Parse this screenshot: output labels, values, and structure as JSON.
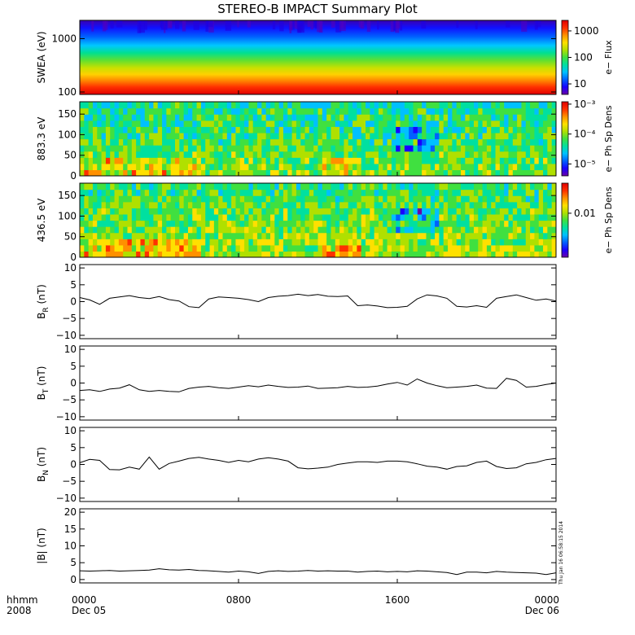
{
  "title": "STEREO-B IMPACT Summary Plot",
  "timestamp": "Thu Jan 16 06:58:15 2014",
  "colors": {
    "frame": "#000000",
    "trace": "#000000",
    "colormap": [
      "#6a00a8",
      "#1900ff",
      "#0060ff",
      "#00c0ff",
      "#00e0a0",
      "#40e040",
      "#b0e000",
      "#ffe000",
      "#ff9000",
      "#ff3000",
      "#e00000"
    ]
  },
  "x_axis": {
    "ticks": [
      "0000",
      "0800",
      "1600",
      "0000"
    ],
    "tick_hours": [
      0,
      8,
      16,
      24
    ],
    "sub_ticks": [
      "Dec 05",
      "",
      "",
      "Dec 06"
    ],
    "left_label": "hhmm",
    "left_sub": "2008",
    "range_hours": [
      0,
      24
    ]
  },
  "chart_data": [
    {
      "type": "heatmap",
      "name": "swea",
      "ylabel": "SWEA (eV)",
      "yscale": "log",
      "ylim": [
        90,
        2200
      ],
      "yticks": [
        "1000",
        "100"
      ],
      "ytick_values": [
        1000,
        100
      ],
      "colorbar": {
        "label": "e− Flux",
        "scale": "log",
        "ticks": [
          "1000",
          "100",
          "10"
        ],
        "tick_values": [
          1000,
          100,
          10
        ],
        "range": [
          4,
          2500
        ]
      },
      "description_values": {
        "flux_at_100eV": 1500,
        "flux_at_400eV": 100,
        "flux_at_2000eV": 5
      }
    },
    {
      "type": "heatmap",
      "name": "pad883",
      "ylabel": "883.3 eV",
      "ylim": [
        0,
        180
      ],
      "yticks": [
        "150",
        "100",
        "50",
        "0"
      ],
      "ytick_values": [
        150,
        100,
        50,
        0
      ],
      "colorbar": {
        "label": "e− Ph Sp Dens",
        "scale": "log",
        "ticks": [
          "10⁻³",
          "10⁻⁴",
          "10⁻⁵"
        ],
        "tick_values": [
          0.001,
          0.0001,
          1e-05
        ],
        "range": [
          4e-06,
          0.0012
        ]
      }
    },
    {
      "type": "heatmap",
      "name": "pad436",
      "ylabel": "436.5 eV",
      "ylim": [
        0,
        180
      ],
      "yticks": [
        "150",
        "100",
        "50",
        "0"
      ],
      "ytick_values": [
        150,
        100,
        50,
        0
      ],
      "colorbar": {
        "label": "e− Ph Sp Dens",
        "scale": "log",
        "ticks": [
          "0.01"
        ],
        "tick_values": [
          0.01
        ],
        "range": [
          0.002,
          0.03
        ]
      }
    },
    {
      "type": "line",
      "name": "br",
      "ylabel": "B",
      "ylabel_sub": "R",
      "ylabel_unit": " (nT)",
      "ylim": [
        -11,
        11
      ],
      "yticks": [
        "10",
        "5",
        "0",
        "−5",
        "−10"
      ],
      "ytick_values": [
        10,
        5,
        0,
        -5,
        -10
      ],
      "x": [
        0,
        0.5,
        1,
        1.5,
        2,
        2.5,
        3,
        3.5,
        4,
        4.5,
        5,
        5.5,
        6,
        6.5,
        7,
        7.5,
        8,
        8.5,
        9,
        9.5,
        10,
        10.5,
        11,
        11.5,
        12,
        12.5,
        13,
        13.5,
        14,
        14.5,
        15,
        15.5,
        16,
        16.5,
        17,
        17.5,
        18,
        18.5,
        19,
        19.5,
        20,
        20.5,
        21,
        21.5,
        22,
        22.5,
        23,
        23.5,
        24
      ],
      "values": [
        1.2,
        0.5,
        -0.8,
        1.0,
        1.4,
        1.8,
        1.2,
        0.9,
        1.5,
        0.6,
        0.2,
        -1.5,
        -1.8,
        0.8,
        1.4,
        1.2,
        1.0,
        0.6,
        0.0,
        1.2,
        1.6,
        1.8,
        2.2,
        1.8,
        2.1,
        1.6,
        1.5,
        1.7,
        -1.2,
        -1.0,
        -1.3,
        -1.8,
        -1.7,
        -1.4,
        0.8,
        2.0,
        1.7,
        1.0,
        -1.4,
        -1.6,
        -1.2,
        -1.7,
        1.0,
        1.5,
        2.0,
        1.2,
        0.4,
        0.8,
        0.2
      ]
    },
    {
      "type": "line",
      "name": "bt",
      "ylabel": "B",
      "ylabel_sub": "T",
      "ylabel_unit": " (nT)",
      "ylim": [
        -11,
        11
      ],
      "yticks": [
        "10",
        "5",
        "0",
        "−5",
        "−10"
      ],
      "ytick_values": [
        10,
        5,
        0,
        -5,
        -10
      ],
      "x": [
        0,
        0.5,
        1,
        1.5,
        2,
        2.5,
        3,
        3.5,
        4,
        4.5,
        5,
        5.5,
        6,
        6.5,
        7,
        7.5,
        8,
        8.5,
        9,
        9.5,
        10,
        10.5,
        11,
        11.5,
        12,
        12.5,
        13,
        13.5,
        14,
        14.5,
        15,
        15.5,
        16,
        16.5,
        17,
        17.5,
        18,
        18.5,
        19,
        19.5,
        20,
        20.5,
        21,
        21.5,
        22,
        22.5,
        23,
        23.5,
        24
      ],
      "values": [
        -2.2,
        -2.0,
        -2.5,
        -1.8,
        -1.5,
        -0.5,
        -2.0,
        -2.5,
        -2.2,
        -2.5,
        -2.6,
        -1.6,
        -1.2,
        -1.0,
        -1.4,
        -1.6,
        -1.2,
        -0.8,
        -1.1,
        -0.6,
        -1.0,
        -1.3,
        -1.2,
        -0.9,
        -1.6,
        -1.5,
        -1.4,
        -1.0,
        -1.3,
        -1.2,
        -0.9,
        -0.3,
        0.2,
        -0.6,
        1.2,
        0.0,
        -0.8,
        -1.4,
        -1.2,
        -1.0,
        -0.6,
        -1.5,
        -1.6,
        1.4,
        0.8,
        -1.2,
        -1.0,
        -0.4,
        0.0
      ]
    },
    {
      "type": "line",
      "name": "bn",
      "ylabel": "B",
      "ylabel_sub": "N",
      "ylabel_unit": " (nT)",
      "ylim": [
        -11,
        11
      ],
      "yticks": [
        "10",
        "5",
        "0",
        "−5",
        "−10"
      ],
      "ytick_values": [
        10,
        5,
        0,
        -5,
        -10
      ],
      "x": [
        0,
        0.5,
        1,
        1.5,
        2,
        2.5,
        3,
        3.5,
        4,
        4.5,
        5,
        5.5,
        6,
        6.5,
        7,
        7.5,
        8,
        8.5,
        9,
        9.5,
        10,
        10.5,
        11,
        11.5,
        12,
        12.5,
        13,
        13.5,
        14,
        14.5,
        15,
        15.5,
        16,
        16.5,
        17,
        17.5,
        18,
        18.5,
        19,
        19.5,
        20,
        20.5,
        21,
        21.5,
        22,
        22.5,
        23,
        23.5,
        24
      ],
      "values": [
        0.5,
        1.5,
        1.2,
        -1.5,
        -1.6,
        -0.8,
        -1.4,
        2.2,
        -1.4,
        0.3,
        1.0,
        1.8,
        2.1,
        1.6,
        1.2,
        0.6,
        1.2,
        0.8,
        1.6,
        2.0,
        1.6,
        1.0,
        -1.0,
        -1.3,
        -1.1,
        -0.8,
        0.0,
        0.4,
        0.8,
        0.8,
        0.6,
        1.0,
        1.0,
        0.8,
        0.2,
        -0.5,
        -0.8,
        -1.4,
        -0.6,
        -0.4,
        0.6,
        1.0,
        -0.6,
        -1.2,
        -1.0,
        0.2,
        0.6,
        1.4,
        1.8
      ]
    },
    {
      "type": "line",
      "name": "bmag",
      "ylabel": "|B| (nT)",
      "ylim": [
        -1,
        21
      ],
      "yticks": [
        "20",
        "15",
        "10",
        "5",
        "0"
      ],
      "ytick_values": [
        20,
        15,
        10,
        5,
        0
      ],
      "x": [
        0,
        0.5,
        1,
        1.5,
        2,
        2.5,
        3,
        3.5,
        4,
        4.5,
        5,
        5.5,
        6,
        6.5,
        7,
        7.5,
        8,
        8.5,
        9,
        9.5,
        10,
        10.5,
        11,
        11.5,
        12,
        12.5,
        13,
        13.5,
        14,
        14.5,
        15,
        15.5,
        16,
        16.5,
        17,
        17.5,
        18,
        18.5,
        19,
        19.5,
        20,
        20.5,
        21,
        21.5,
        22,
        22.5,
        23,
        23.5,
        24
      ],
      "values": [
        2.6,
        2.5,
        2.6,
        2.7,
        2.5,
        2.6,
        2.7,
        2.8,
        3.2,
        2.9,
        2.8,
        3.0,
        2.7,
        2.6,
        2.4,
        2.2,
        2.5,
        2.3,
        1.8,
        2.4,
        2.6,
        2.4,
        2.5,
        2.7,
        2.5,
        2.6,
        2.5,
        2.5,
        2.2,
        2.4,
        2.5,
        2.3,
        2.4,
        2.3,
        2.6,
        2.5,
        2.3,
        2.1,
        1.5,
        2.2,
        2.2,
        2.0,
        2.4,
        2.2,
        2.1,
        2.0,
        1.9,
        1.5,
        2.0
      ]
    }
  ]
}
